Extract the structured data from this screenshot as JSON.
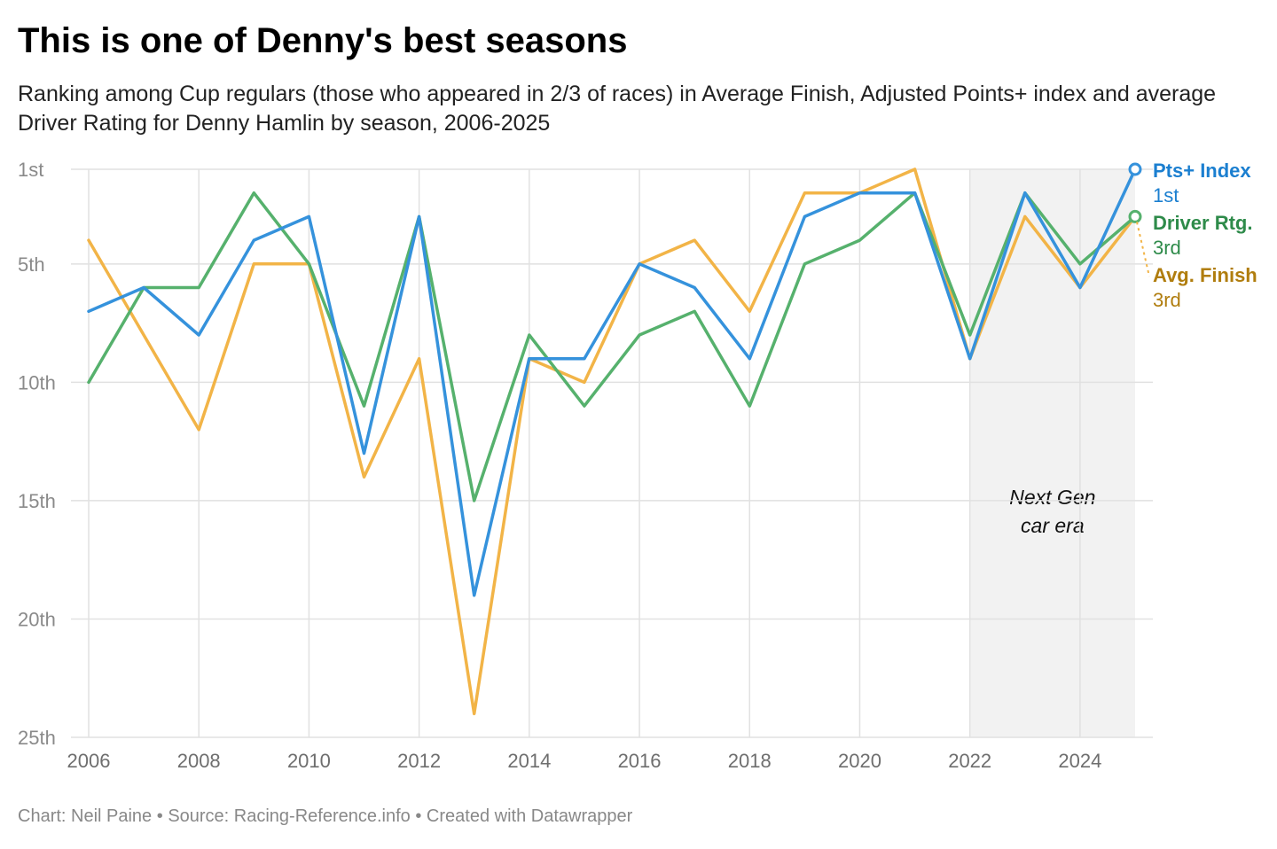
{
  "title": "This is one of Denny's best seasons",
  "subtitle": "Ranking among Cup regulars (those who appeared in 2/3 of races) in Average Finish, Adjusted Points+ index and average Driver Rating for Denny Hamlin by season, 2006-2025",
  "footer": {
    "chart": "Chart: Neil Paine",
    "sep1": " • ",
    "source": "Source: Racing-Reference.info",
    "sep2": " • ",
    "created": "Created with Datawrapper"
  },
  "chart_data": {
    "type": "line",
    "x": [
      2006,
      2007,
      2008,
      2009,
      2010,
      2011,
      2012,
      2013,
      2014,
      2015,
      2016,
      2017,
      2018,
      2019,
      2020,
      2021,
      2022,
      2023,
      2024,
      2025
    ],
    "x_ticks": [
      2006,
      2008,
      2010,
      2012,
      2014,
      2016,
      2018,
      2020,
      2022,
      2024
    ],
    "x_tick_labels": [
      "2006",
      "2008",
      "2010",
      "2012",
      "2014",
      "2016",
      "2018",
      "2020",
      "2022",
      "2024"
    ],
    "y_ticks": [
      1,
      5,
      10,
      15,
      20,
      25
    ],
    "y_tick_labels": [
      "1st",
      "5th",
      "10th",
      "15th",
      "20th",
      "25th"
    ],
    "ylim": [
      1,
      25
    ],
    "y_inverted": true,
    "grid": true,
    "shaded_region": {
      "x_start": 2022,
      "x_end": 2025,
      "label_line1": "Next Gen",
      "label_line2": "car era",
      "color": "#f2f2f2"
    },
    "series": [
      {
        "name": "Avg. Finish",
        "end_label": "3rd",
        "color": "#f2b447",
        "label_color": "#b07d0e",
        "values": [
          4,
          8,
          12,
          5,
          5,
          14,
          9,
          24,
          9,
          10,
          5,
          4,
          7,
          2,
          2,
          1,
          9,
          3,
          6,
          3
        ]
      },
      {
        "name": "Driver Rtg.",
        "end_label": "3rd",
        "color": "#56b16d",
        "label_color": "#2e8b4a",
        "values": [
          10,
          6,
          6,
          2,
          5,
          11,
          3,
          15,
          8,
          11,
          8,
          7,
          11,
          5,
          4,
          2,
          8,
          2,
          5,
          3
        ]
      },
      {
        "name": "Pts+ Index",
        "end_label": "1st",
        "color": "#3592dc",
        "label_color": "#1b7fd0",
        "values": [
          7,
          6,
          8,
          4,
          3,
          13,
          3,
          19,
          9,
          9,
          5,
          6,
          9,
          3,
          2,
          2,
          9,
          2,
          6,
          1
        ]
      }
    ]
  }
}
